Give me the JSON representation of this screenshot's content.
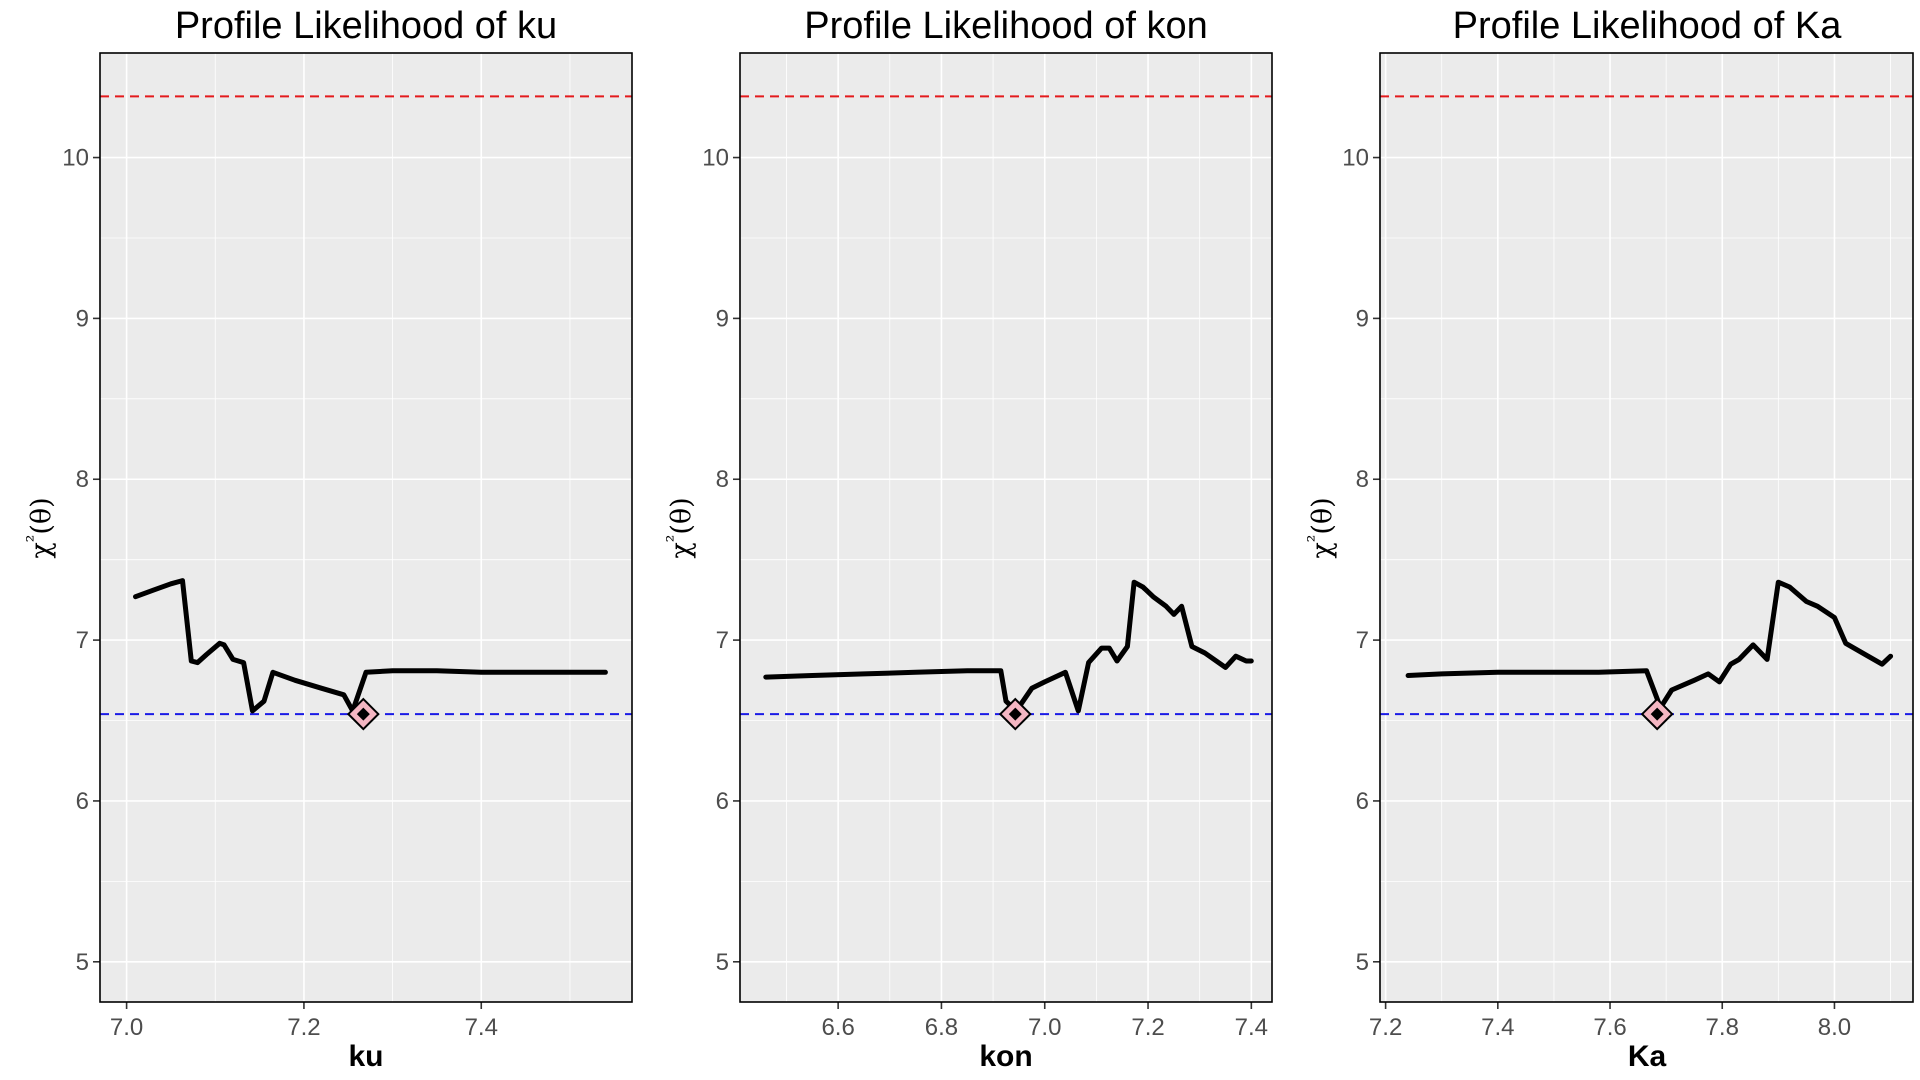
{
  "chart_data": [
    {
      "type": "line",
      "title": "Profile Likelihood of ku",
      "xlabel": "ku",
      "ylabel": "χ²(θ)",
      "xlim": [
        6.97,
        7.57
      ],
      "ylim": [
        4.75,
        10.65
      ],
      "xticks": [
        7.0,
        7.2,
        7.4
      ],
      "xtick_labels": [
        "7.0",
        "7.2",
        "7.4"
      ],
      "yticks": [
        5,
        6,
        7,
        8,
        9,
        10
      ],
      "ytick_labels": [
        "5",
        "6",
        "7",
        "8",
        "9",
        "10"
      ],
      "grid": true,
      "series": [
        {
          "x": [
            7.01,
            7.03,
            7.05,
            7.063,
            7.073,
            7.08,
            7.09,
            7.105,
            7.11,
            7.12,
            7.132,
            7.142,
            7.155,
            7.165,
            7.19,
            7.22,
            7.245,
            7.255,
            7.27,
            7.3,
            7.35,
            7.4,
            7.45,
            7.5,
            7.54
          ],
          "y": [
            7.27,
            7.31,
            7.35,
            7.37,
            6.87,
            6.86,
            6.91,
            6.98,
            6.97,
            6.88,
            6.86,
            6.56,
            6.62,
            6.8,
            6.75,
            6.7,
            6.66,
            6.56,
            6.8,
            6.81,
            6.81,
            6.8,
            6.8,
            6.8,
            6.8
          ]
        }
      ],
      "reference_lines": [
        {
          "y": 10.38,
          "color": "#e41a1c",
          "style": "dashed"
        },
        {
          "y": 6.54,
          "color": "#1a1ae6",
          "style": "dashed"
        }
      ],
      "optimum": {
        "x": 7.267,
        "y": 6.54
      }
    },
    {
      "type": "line",
      "title": "Profile Likelihood of kon",
      "xlabel": "kon",
      "ylabel": "χ²(θ)",
      "xlim": [
        6.41,
        7.44
      ],
      "ylim": [
        4.75,
        10.65
      ],
      "xticks": [
        6.6,
        6.8,
        7.0,
        7.2,
        7.4
      ],
      "xtick_labels": [
        "6.6",
        "6.8",
        "7.0",
        "7.2",
        "7.4"
      ],
      "yticks": [
        5,
        6,
        7,
        8,
        9,
        10
      ],
      "ytick_labels": [
        "5",
        "6",
        "7",
        "8",
        "9",
        "10"
      ],
      "grid": true,
      "series": [
        {
          "x": [
            6.46,
            6.55,
            6.65,
            6.75,
            6.85,
            6.915,
            6.925,
            6.945,
            6.975,
            7.0,
            7.04,
            7.065,
            7.085,
            7.11,
            7.125,
            7.14,
            7.16,
            7.173,
            7.19,
            7.21,
            7.235,
            7.25,
            7.265,
            7.285,
            7.31,
            7.35,
            7.37,
            7.39,
            7.4
          ],
          "y": [
            6.77,
            6.78,
            6.79,
            6.8,
            6.81,
            6.81,
            6.62,
            6.56,
            6.7,
            6.74,
            6.8,
            6.56,
            6.86,
            6.95,
            6.95,
            6.87,
            6.96,
            7.36,
            7.33,
            7.27,
            7.21,
            7.16,
            7.21,
            6.96,
            6.92,
            6.83,
            6.9,
            6.87,
            6.87
          ]
        }
      ],
      "reference_lines": [
        {
          "y": 10.38,
          "color": "#e41a1c",
          "style": "dashed"
        },
        {
          "y": 6.54,
          "color": "#1a1ae6",
          "style": "dashed"
        }
      ],
      "optimum": {
        "x": 6.943,
        "y": 6.54
      }
    },
    {
      "type": "line",
      "title": "Profile Likelihood of Ka",
      "xlabel": "Ka",
      "ylabel": "χ²(θ)",
      "xlim": [
        7.19,
        8.14
      ],
      "ylim": [
        4.75,
        10.65
      ],
      "xticks": [
        7.2,
        7.4,
        7.6,
        7.8,
        8.0
      ],
      "xtick_labels": [
        "7.2",
        "7.4",
        "7.6",
        "7.8",
        "8.0"
      ],
      "yticks": [
        5,
        6,
        7,
        8,
        9,
        10
      ],
      "ytick_labels": [
        "5",
        "6",
        "7",
        "8",
        "9",
        "10"
      ],
      "grid": true,
      "series": [
        {
          "x": [
            7.24,
            7.3,
            7.4,
            7.5,
            7.58,
            7.665,
            7.69,
            7.71,
            7.75,
            7.775,
            7.795,
            7.815,
            7.83,
            7.855,
            7.88,
            7.9,
            7.92,
            7.95,
            7.97,
            8.0,
            8.02,
            8.06,
            8.085,
            8.1
          ],
          "y": [
            6.78,
            6.79,
            6.8,
            6.8,
            6.8,
            6.81,
            6.58,
            6.69,
            6.75,
            6.79,
            6.74,
            6.85,
            6.88,
            6.97,
            6.88,
            7.36,
            7.33,
            7.24,
            7.21,
            7.14,
            6.98,
            6.9,
            6.85,
            6.9
          ]
        }
      ],
      "reference_lines": [
        {
          "y": 10.38,
          "color": "#e41a1c",
          "style": "dashed"
        },
        {
          "y": 6.54,
          "color": "#1a1ae6",
          "style": "dashed"
        }
      ],
      "optimum": {
        "x": 7.684,
        "y": 6.54
      }
    }
  ],
  "colors": {
    "panel_background": "#ebebeb",
    "grid": "#ffffff",
    "line": "#000000",
    "optimum_fill": "#f4b6c2",
    "tick_text": "#4d4d4d"
  }
}
